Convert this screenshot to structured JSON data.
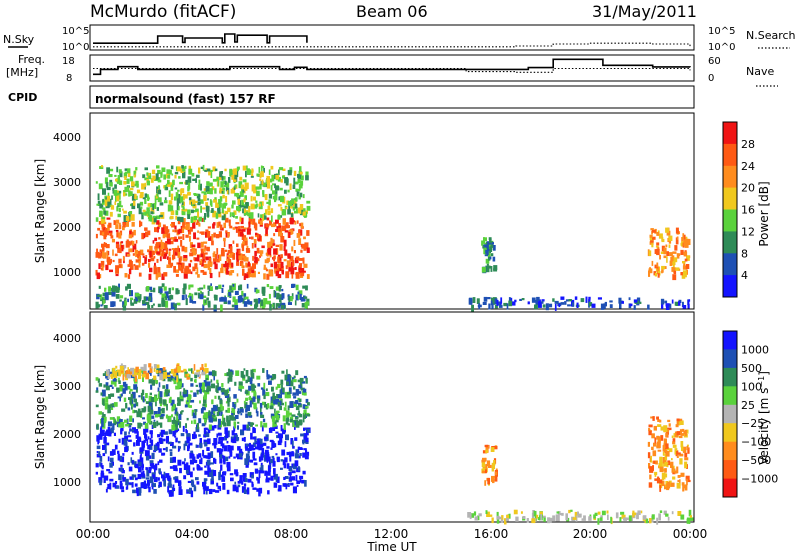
{
  "header": {
    "station": "McMurdo (fitACF)",
    "beam": "Beam 06",
    "date": "31/May/2011"
  },
  "params": {
    "nsky_label": "N.Sky",
    "nsearch_label": "N.Search",
    "freq_label": "Freq.",
    "freq_unit": "[MHz]",
    "nave_label": "Nave",
    "cpid_label": "CPID",
    "cpid_value": "normalsound (fast) 157 RF",
    "noise_ticks_left": [
      "10^5",
      "10^0"
    ],
    "noise_ticks_right": [
      "10^5",
      "10^0"
    ],
    "freq_ticks": [
      "18",
      "8"
    ],
    "nave_ticks": [
      "60",
      "0"
    ]
  },
  "axes": {
    "ylabel": "Slant Range [km]",
    "yticks": [
      "4000",
      "3000",
      "2000",
      "1000"
    ],
    "xlabel": "Time UT",
    "xticks": [
      "00:00",
      "04:00",
      "08:00",
      "12:00",
      "16:00",
      "20:00",
      "00:00"
    ]
  },
  "colors": {
    "power": [
      "#1414ff",
      "#1e50b4",
      "#2e8b57",
      "#5ad23c",
      "#f0c81e",
      "#ff8c1e",
      "#ff5a14",
      "#f01414"
    ],
    "velocity": [
      "#1414ff",
      "#1e50b4",
      "#2e8b57",
      "#5ad23c",
      "#b4b4b4",
      "#f0c81e",
      "#ff8c1e",
      "#ff5a14",
      "#f01414"
    ]
  },
  "chart_data": [
    {
      "type": "line",
      "panel": "noise",
      "xunit": "hours UT",
      "series": [
        {
          "name": "N.Sky",
          "x": [
            0,
            2.5,
            2.6,
            3.6,
            3.7,
            5.2,
            5.3,
            5.7,
            5.8,
            7.0,
            7.1,
            8.6
          ],
          "values": [
            1.2,
            1.2,
            3.0,
            1.4,
            2.5,
            1.3,
            3.5,
            1.5,
            3.2,
            1.3,
            3.0,
            1.3
          ]
        },
        {
          "name": "N.Search",
          "x": [
            0,
            4,
            8.6,
            15,
            17,
            18.5,
            20,
            22.5,
            24
          ],
          "values": [
            0.3,
            0.3,
            0.3,
            0.3,
            0.5,
            1.0,
            1.2,
            1.0,
            0.4
          ]
        }
      ]
    },
    {
      "type": "line",
      "panel": "frequency and nave",
      "xunit": "hours UT",
      "series": [
        {
          "name": "Freq.",
          "x": [
            0,
            0.3,
            1.0,
            1.8,
            4.5,
            5.5,
            7.5,
            8.1,
            8.6,
            15,
            17.5,
            18.5,
            20.5,
            22.5,
            24
          ],
          "values": [
            10.5,
            12.6,
            13.8,
            12.6,
            12.6,
            13.8,
            12.6,
            13.5,
            12.6,
            12.6,
            13.4,
            17,
            14.4,
            13.7,
            13.5
          ]
        },
        {
          "name": "Nave",
          "x": [
            0,
            4,
            8.6,
            15,
            17,
            18.5,
            24
          ],
          "values": [
            30,
            30,
            30,
            22,
            20,
            30,
            25
          ]
        }
      ]
    },
    {
      "type": "heatmap",
      "panel": "Power",
      "label": "Power [dB]",
      "xunit": "hours UT",
      "yunit": "km",
      "ylim": [
        180,
        4560
      ],
      "colorbar_ticks": [
        4,
        8,
        12,
        16,
        20,
        24,
        28
      ],
      "regions": [
        {
          "t0": 0.1,
          "t1": 8.6,
          "r0": 900,
          "r1": 2200,
          "level": 6
        },
        {
          "t0": 0.1,
          "t1": 8.6,
          "r0": 2200,
          "r1": 3400,
          "level": 3
        },
        {
          "t0": 0.1,
          "t1": 8.6,
          "r0": 200,
          "r1": 700,
          "level": 2
        },
        {
          "t0": 15.0,
          "t1": 24.0,
          "r0": 200,
          "r1": 400,
          "level": 1
        },
        {
          "t0": 22.3,
          "t1": 23.9,
          "r0": 900,
          "r1": 2000,
          "level": 5
        },
        {
          "t0": 15.6,
          "t1": 16.1,
          "r0": 1000,
          "r1": 1800,
          "level": 2
        }
      ]
    },
    {
      "type": "heatmap",
      "panel": "Velocity",
      "label": "Velocity [m s^-1]",
      "xunit": "hours UT",
      "yunit": "km",
      "ylim": [
        180,
        4560
      ],
      "colorbar_ticks": [
        1000,
        500,
        100,
        25,
        -25,
        -100,
        -500,
        -1000
      ],
      "regions": [
        {
          "t0": 0.1,
          "t1": 8.6,
          "r0": 800,
          "r1": 2200,
          "level": 0
        },
        {
          "t0": 0.1,
          "t1": 8.6,
          "r0": 2200,
          "r1": 3400,
          "level": 2
        },
        {
          "t0": 0.5,
          "t1": 4.5,
          "r0": 3200,
          "r1": 3500,
          "level": 5
        },
        {
          "t0": 15.0,
          "t1": 24.0,
          "r0": 200,
          "r1": 400,
          "level": 4
        },
        {
          "t0": 22.3,
          "t1": 23.9,
          "r0": 900,
          "r1": 2400,
          "level": 6
        },
        {
          "t0": 15.6,
          "t1": 16.2,
          "r0": 1000,
          "r1": 1800,
          "level": 6
        }
      ]
    }
  ]
}
